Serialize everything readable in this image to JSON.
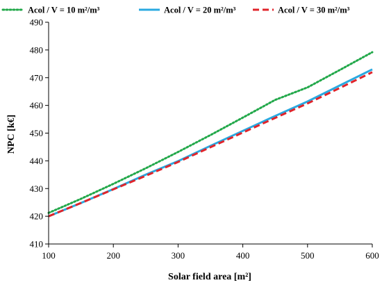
{
  "chart_data": {
    "type": "line",
    "xlabel": "Solar field area [m²]",
    "ylabel": "NPC [k€]",
    "xlim": [
      100,
      600
    ],
    "ylim": [
      410,
      490
    ],
    "xticks": [
      100,
      200,
      300,
      400,
      500,
      600
    ],
    "yticks": [
      410,
      420,
      430,
      440,
      450,
      460,
      470,
      480,
      490
    ],
    "grid": false,
    "legend_position": "top",
    "series": [
      {
        "name": "Acol / V = 10 m²/m³",
        "color": "#22a84a",
        "style": "dotted",
        "x": [
          100,
          150,
          200,
          250,
          300,
          350,
          400,
          450,
          500,
          550,
          600
        ],
        "y": [
          421.2,
          426.3,
          431.7,
          437.3,
          443.2,
          449.3,
          455.6,
          462.0,
          466.5,
          472.8,
          479.2
        ]
      },
      {
        "name": "Acol / V = 20 m²/m³",
        "color": "#2aa9e0",
        "style": "solid",
        "x": [
          100,
          150,
          200,
          250,
          300,
          350,
          400,
          450,
          500,
          550,
          600
        ],
        "y": [
          420.0,
          424.8,
          429.8,
          435.0,
          439.9,
          445.4,
          450.8,
          456.2,
          461.4,
          467.2,
          473.0
        ]
      },
      {
        "name": "Acol / V = 30 m²/m³",
        "color": "#e0242b",
        "style": "dashed",
        "x": [
          100,
          150,
          200,
          250,
          300,
          350,
          400,
          450,
          500,
          550,
          600
        ],
        "y": [
          420.0,
          424.8,
          429.7,
          434.6,
          439.6,
          444.9,
          450.2,
          455.5,
          460.7,
          466.3,
          472.0
        ]
      }
    ]
  }
}
